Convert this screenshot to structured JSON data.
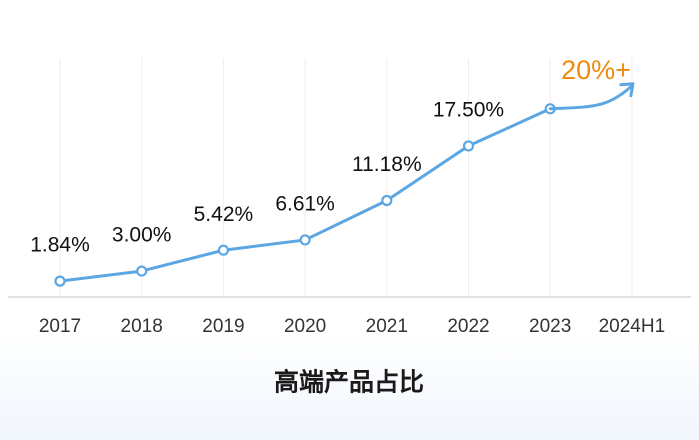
{
  "chart_data": {
    "type": "line",
    "title": "高端产品占比",
    "categories": [
      "2017",
      "2018",
      "2019",
      "2020",
      "2021",
      "2022",
      "2023",
      "2024H1"
    ],
    "values": [
      1.84,
      3.0,
      5.42,
      6.61,
      11.18,
      17.5,
      21.8,
      null
    ],
    "value_labels": [
      "1.84%",
      "3.00%",
      "5.42%",
      "6.61%",
      "11.18%",
      "17.50%",
      null,
      null
    ],
    "annotation": "20%+",
    "color": "#5ba6e3",
    "annotation_color": "#ee8a0e",
    "ylim": [
      0,
      30
    ],
    "grid": true
  }
}
